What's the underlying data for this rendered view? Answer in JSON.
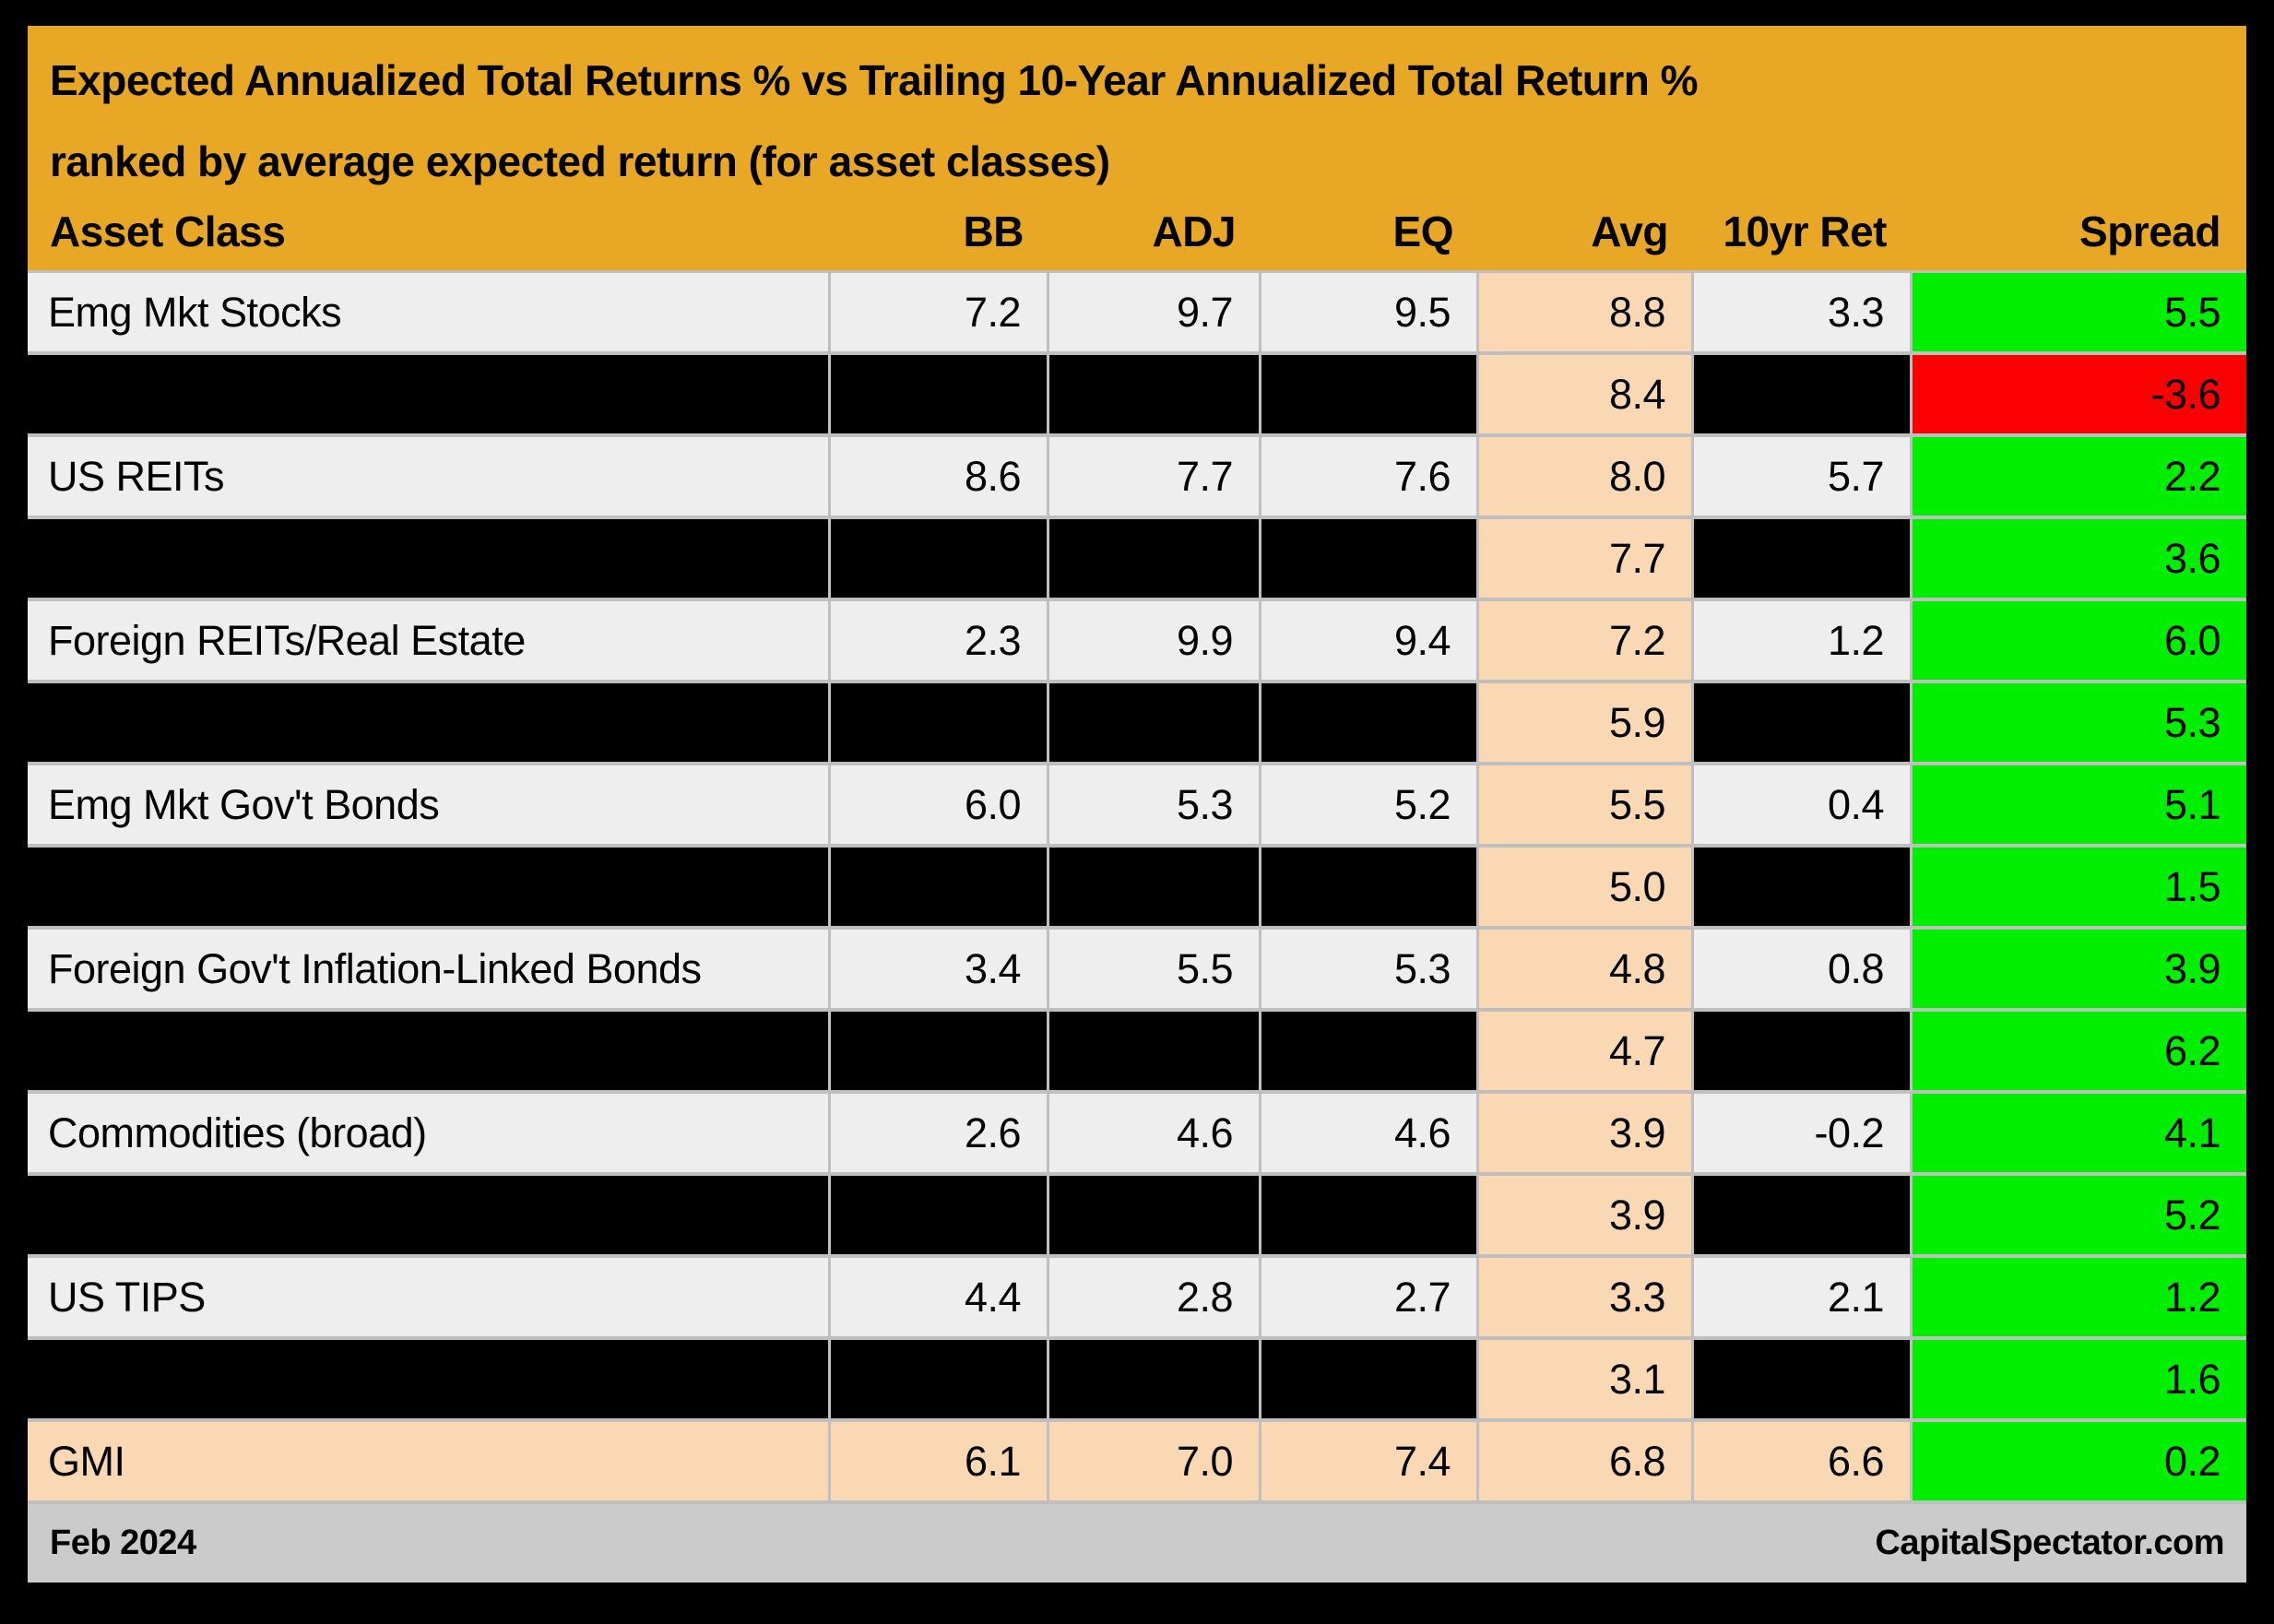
{
  "header": {
    "title_line1": "Expected Annualized Total Returns % vs Trailing 10-Year Annualized Total Return %",
    "title_line2": "ranked by average expected return (for asset classes)"
  },
  "footer": {
    "left": "Feb 2024",
    "right": "CapitalSpectator.com"
  },
  "colors": {
    "gold": "#E9A726",
    "peach": "#FAD8B3",
    "rowlight": "#EEEEEE",
    "sep": "#BFBFBF",
    "green": "#00EE00",
    "red": "#FA0000",
    "footer": "#CBCBCB",
    "ink": "#000000"
  },
  "chart_data": {
    "type": "table",
    "title": "Expected Annualized Total Returns % vs Trailing 10-Year Annualized Total Return % ranked by average expected return (for asset classes)",
    "legend_note": "Avg column shaded peach; Spread column green when positive, red when negative; alternating rows redacted in black",
    "columns": [
      {
        "key": "asset",
        "label": "Asset Class"
      },
      {
        "key": "bb",
        "label": "BB"
      },
      {
        "key": "adj",
        "label": "ADJ"
      },
      {
        "key": "eq",
        "label": "EQ"
      },
      {
        "key": "avg",
        "label": "Avg"
      },
      {
        "key": "ret10",
        "label": "10yr Ret"
      },
      {
        "key": "spread",
        "label": "Spread"
      }
    ],
    "rows": [
      {
        "asset": "Emg Mkt Stocks",
        "bb": "7.2",
        "adj": "9.7",
        "eq": "9.5",
        "avg": "8.8",
        "ret10": "3.3",
        "spread": "5.5",
        "redacted": false,
        "spread_negative": false,
        "highlight": false
      },
      {
        "asset": "",
        "bb": "",
        "adj": "",
        "eq": "",
        "avg": "8.4",
        "ret10": "",
        "spread": "-3.6",
        "redacted": true,
        "spread_negative": true,
        "highlight": false
      },
      {
        "asset": "US REITs",
        "bb": "8.6",
        "adj": "7.7",
        "eq": "7.6",
        "avg": "8.0",
        "ret10": "5.7",
        "spread": "2.2",
        "redacted": false,
        "spread_negative": false,
        "highlight": false
      },
      {
        "asset": "",
        "bb": "",
        "adj": "",
        "eq": "",
        "avg": "7.7",
        "ret10": "",
        "spread": "3.6",
        "redacted": true,
        "spread_negative": false,
        "highlight": false
      },
      {
        "asset": "Foreign REITs/Real Estate",
        "bb": "2.3",
        "adj": "9.9",
        "eq": "9.4",
        "avg": "7.2",
        "ret10": "1.2",
        "spread": "6.0",
        "redacted": false,
        "spread_negative": false,
        "highlight": false
      },
      {
        "asset": "",
        "bb": "",
        "adj": "",
        "eq": "",
        "avg": "5.9",
        "ret10": "",
        "spread": "5.3",
        "redacted": true,
        "spread_negative": false,
        "highlight": false
      },
      {
        "asset": "Emg Mkt Gov't Bonds",
        "bb": "6.0",
        "adj": "5.3",
        "eq": "5.2",
        "avg": "5.5",
        "ret10": "0.4",
        "spread": "5.1",
        "redacted": false,
        "spread_negative": false,
        "highlight": false
      },
      {
        "asset": "",
        "bb": "",
        "adj": "",
        "eq": "",
        "avg": "5.0",
        "ret10": "",
        "spread": "1.5",
        "redacted": true,
        "spread_negative": false,
        "highlight": false
      },
      {
        "asset": "Foreign Gov't Inflation-Linked Bonds",
        "bb": "3.4",
        "adj": "5.5",
        "eq": "5.3",
        "avg": "4.8",
        "ret10": "0.8",
        "spread": "3.9",
        "redacted": false,
        "spread_negative": false,
        "highlight": false
      },
      {
        "asset": "",
        "bb": "",
        "adj": "",
        "eq": "",
        "avg": "4.7",
        "ret10": "",
        "spread": "6.2",
        "redacted": true,
        "spread_negative": false,
        "highlight": false
      },
      {
        "asset": "Commodities (broad)",
        "bb": "2.6",
        "adj": "4.6",
        "eq": "4.6",
        "avg": "3.9",
        "ret10": "-0.2",
        "spread": "4.1",
        "redacted": false,
        "spread_negative": false,
        "highlight": false
      },
      {
        "asset": "",
        "bb": "",
        "adj": "",
        "eq": "",
        "avg": "3.9",
        "ret10": "",
        "spread": "5.2",
        "redacted": true,
        "spread_negative": false,
        "highlight": false
      },
      {
        "asset": "US TIPS",
        "bb": "4.4",
        "adj": "2.8",
        "eq": "2.7",
        "avg": "3.3",
        "ret10": "2.1",
        "spread": "1.2",
        "redacted": false,
        "spread_negative": false,
        "highlight": false
      },
      {
        "asset": "",
        "bb": "",
        "adj": "",
        "eq": "",
        "avg": "3.1",
        "ret10": "",
        "spread": "1.6",
        "redacted": true,
        "spread_negative": false,
        "highlight": false
      },
      {
        "asset": "GMI",
        "bb": "6.1",
        "adj": "7.0",
        "eq": "7.4",
        "avg": "6.8",
        "ret10": "6.6",
        "spread": "0.2",
        "redacted": false,
        "spread_negative": false,
        "highlight": true
      }
    ]
  }
}
